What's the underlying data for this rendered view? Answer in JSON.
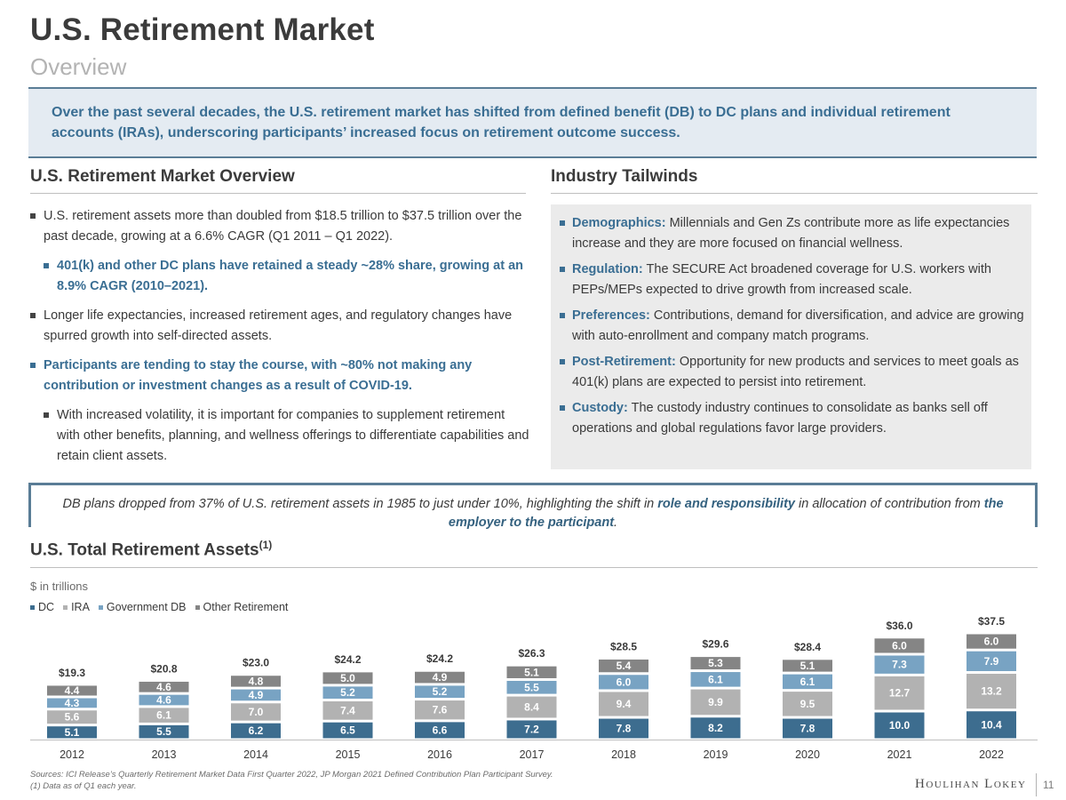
{
  "header": {
    "title": "U.S. Retirement Market",
    "subtitle": "Overview"
  },
  "callout": "Over the past several decades, the U.S. retirement market has shifted from defined benefit (DB) to DC plans and individual retirement accounts (IRAs), underscoring participants’ increased focus on retirement outcome success.",
  "left_section": {
    "heading": "U.S. Retirement Market Overview",
    "bullets": [
      "U.S. retirement assets more than doubled from $18.5 trillion to $37.5 trillion over the past decade, growing at a 6.6% CAGR (Q1 2011 – Q1 2022).",
      "401(k) and other DC plans have retained a steady ~28% share, growing at an 8.9% CAGR (2010–2021).",
      "Longer life expectancies, increased retirement ages, and regulatory changes have spurred growth into self-directed assets.",
      "Participants are tending to stay the course, with ~80% not making any contribution or investment changes as a result of COVID-19.",
      "With increased volatility, it is important for companies to supplement retirement with other benefits, planning, and wellness offerings to differentiate capabilities and retain client assets."
    ]
  },
  "right_section": {
    "heading": "Industry Tailwinds",
    "items": [
      {
        "key": "Demographics:",
        "text": " Millennials and Gen Zs contribute more as life expectancies increase and they are more focused on financial wellness."
      },
      {
        "key": "Regulation:",
        "text": " The SECURE Act broadened coverage for U.S. workers with PEPs/MEPs expected to drive growth from increased scale."
      },
      {
        "key": "Preferences:",
        "text": " Contributions, demand for diversification, and advice are growing with auto-enrollment and company match programs."
      },
      {
        "key": "Post-Retirement:",
        "text": " Opportunity for new products and services to meet goals as 401(k) plans are expected to persist into retirement."
      },
      {
        "key": "Custody:",
        "text": " The custody industry continues to consolidate as banks sell off operations and global regulations favor large providers."
      }
    ]
  },
  "quote": {
    "part1": "DB plans dropped from 37% of U.S. retirement assets in 1985 to just under 10%, highlighting the shift in ",
    "bold1": "role and responsibility",
    "part2": " in allocation of contribution from ",
    "bold2": "the employer to the participant",
    "part3": "."
  },
  "chart_section": {
    "heading": "U.S. Total Retirement Assets",
    "sup": "(1)",
    "units": "$ in trillions"
  },
  "chart_data": {
    "type": "bar",
    "stacked": true,
    "categories": [
      "2012",
      "2013",
      "2014",
      "2015",
      "2016",
      "2017",
      "2018",
      "2019",
      "2020",
      "2021",
      "2022"
    ],
    "series": [
      {
        "name": "DC",
        "color": "#3d6d8f",
        "values": [
          5.1,
          5.5,
          6.2,
          6.5,
          6.6,
          7.2,
          7.8,
          8.2,
          7.8,
          10.0,
          10.4
        ],
        "labels": [
          "5.1",
          "5.5",
          "6.2",
          "6.5",
          "6.6",
          "7.2",
          "7.8",
          "8.2",
          "7.8",
          "10.0",
          "10.4"
        ]
      },
      {
        "name": "IRA",
        "color": "#b2b2b2",
        "values": [
          5.6,
          6.1,
          7.0,
          7.4,
          7.6,
          8.4,
          9.4,
          9.9,
          9.5,
          12.7,
          13.2
        ],
        "labels": [
          "5.6",
          "6.1",
          "7.0",
          "7.4",
          "7.6",
          "8.4",
          "9.4",
          "9.9",
          "9.5",
          "12.7",
          "13.2"
        ]
      },
      {
        "name": "Government DB",
        "color": "#78a3c3",
        "values": [
          4.3,
          4.6,
          4.9,
          5.2,
          5.2,
          5.5,
          6.0,
          6.1,
          6.1,
          7.3,
          7.9
        ],
        "labels": [
          "4.3",
          "4.6",
          "4.9",
          "5.2",
          "5.2",
          "5.5",
          "6.0",
          "6.1",
          "6.1",
          "7.3",
          "7.9"
        ]
      },
      {
        "name": "Other Retirement",
        "color": "#858585",
        "values": [
          4.4,
          4.6,
          4.8,
          5.0,
          4.9,
          5.1,
          5.4,
          5.3,
          5.1,
          6.0,
          6.0
        ],
        "labels": [
          "4.4",
          "4.6",
          "4.8",
          "5.0",
          "4.9",
          "5.1",
          "5.4",
          "5.3",
          "5.1",
          "6.0",
          "6.0"
        ]
      }
    ],
    "totals": [
      "$19.3",
      "$20.8",
      "$23.0",
      "$24.2",
      "$24.2",
      "$26.3",
      "$28.5",
      "$29.6",
      "$28.4",
      "$36.0",
      "$37.5"
    ],
    "ylabel": "$ in trillions",
    "legend_position": "top-left",
    "grid": false
  },
  "footnotes": {
    "sources": "Sources: ICI Release’s Quarterly Retirement Market Data First Quarter 2022, JP Morgan 2021 Defined Contribution Plan Participant Survey.",
    "note": "(1) Data as of Q1 each year."
  },
  "branding": {
    "firm": "Houlihan Lokey",
    "page": "11"
  }
}
